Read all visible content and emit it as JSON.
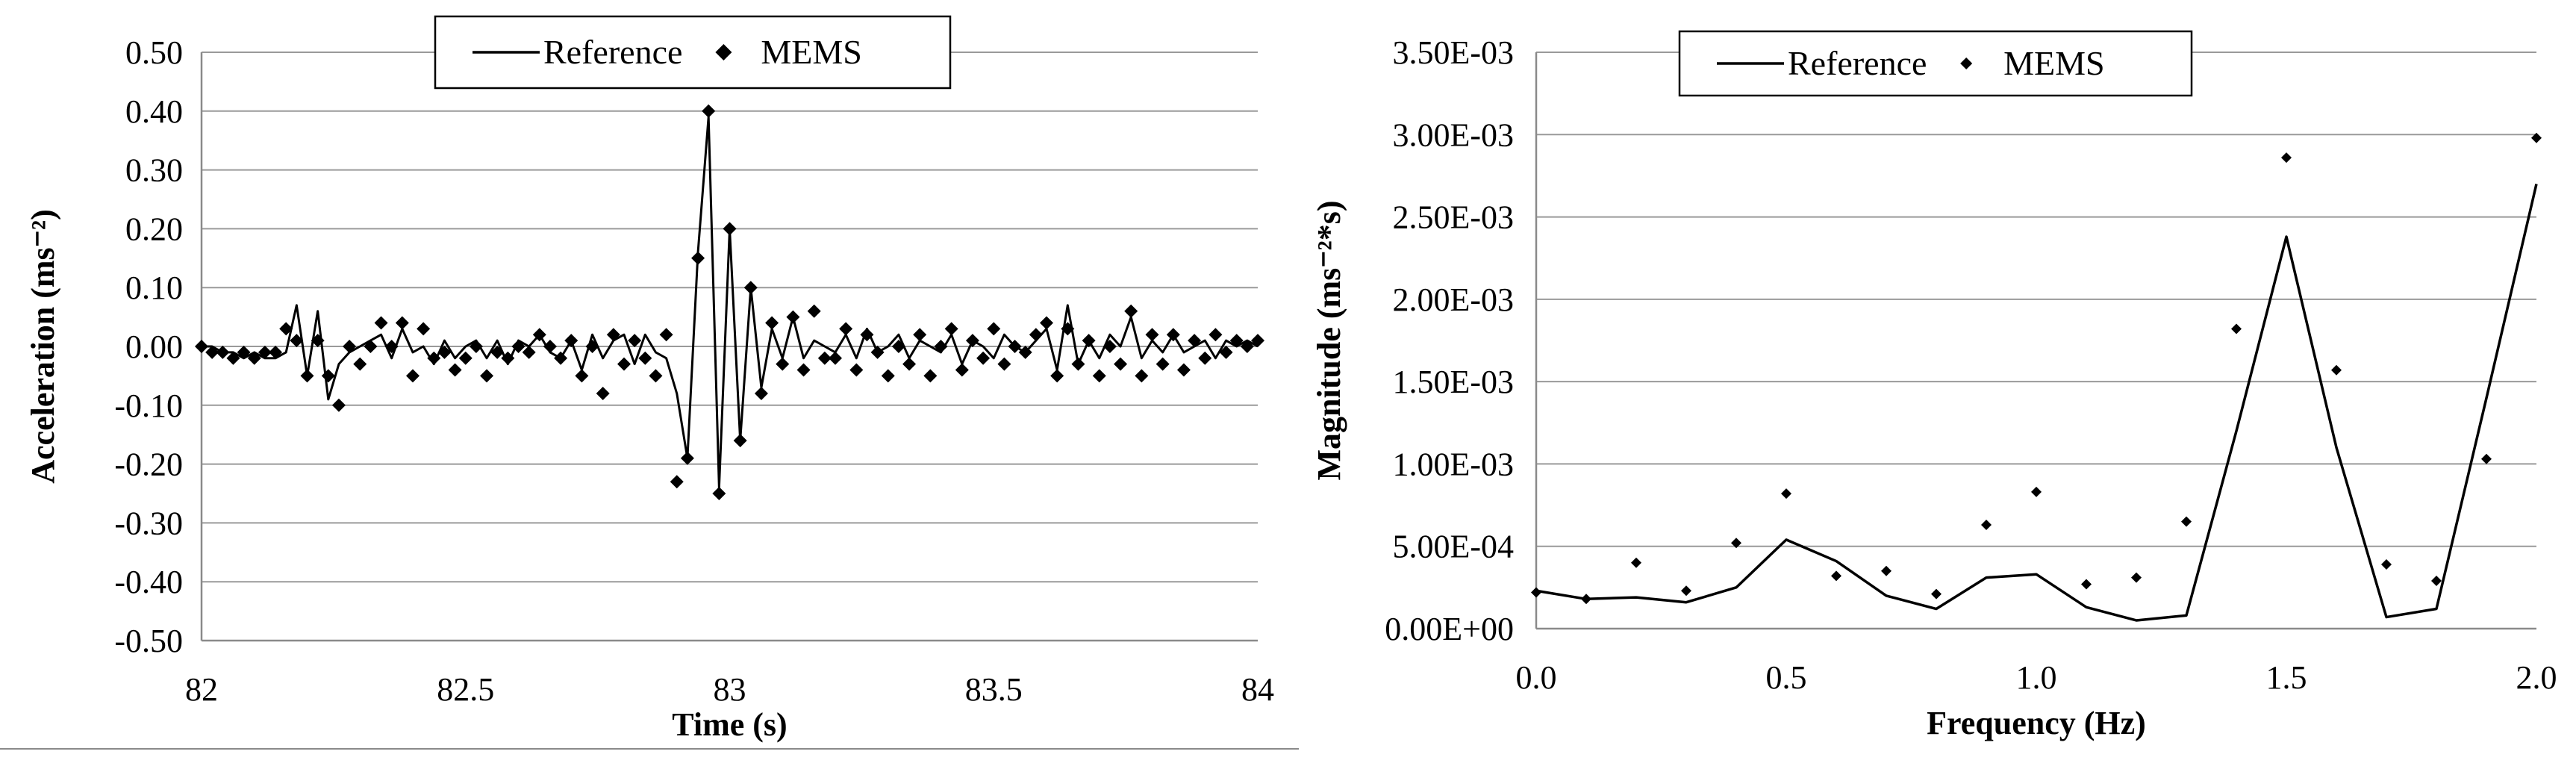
{
  "chart_data": [
    {
      "type": "line",
      "title": "",
      "xlabel": "Time (s)",
      "ylabel": "Acceleration (ms⁻²)",
      "xlim": [
        82,
        84
      ],
      "ylim": [
        -0.5,
        0.5
      ],
      "xticks": [
        "82",
        "82.5",
        "83",
        "83.5",
        "84"
      ],
      "yticks": [
        "0.50",
        "0.40",
        "0.30",
        "0.20",
        "0.10",
        "0.00",
        "-0.10",
        "-0.20",
        "-0.30",
        "-0.40",
        "-0.50"
      ],
      "grid": "horizontal",
      "legend_position": "top-center",
      "series": [
        {
          "name": "Reference",
          "style": "line",
          "x": [
            82.0,
            82.02,
            82.04,
            82.06,
            82.08,
            82.1,
            82.12,
            82.14,
            82.16,
            82.18,
            82.2,
            82.22,
            82.24,
            82.26,
            82.28,
            82.3,
            82.32,
            82.34,
            82.36,
            82.38,
            82.4,
            82.42,
            82.44,
            82.46,
            82.48,
            82.5,
            82.52,
            82.54,
            82.56,
            82.58,
            82.6,
            82.62,
            82.64,
            82.66,
            82.68,
            82.7,
            82.72,
            82.74,
            82.76,
            82.78,
            82.8,
            82.82,
            82.84,
            82.86,
            82.88,
            82.9,
            82.92,
            82.94,
            82.96,
            82.98,
            83.0,
            83.02,
            83.04,
            83.06,
            83.08,
            83.1,
            83.12,
            83.14,
            83.16,
            83.18,
            83.2,
            83.22,
            83.24,
            83.26,
            83.28,
            83.3,
            83.32,
            83.34,
            83.36,
            83.38,
            83.4,
            83.42,
            83.44,
            83.46,
            83.48,
            83.5,
            83.52,
            83.54,
            83.56,
            83.58,
            83.6,
            83.62,
            83.64,
            83.66,
            83.68,
            83.7,
            83.72,
            83.74,
            83.76,
            83.78,
            83.8,
            83.82,
            83.84,
            83.86,
            83.88,
            83.9,
            83.92,
            83.94,
            83.96,
            83.98,
            84.0
          ],
          "values": [
            0.0,
            0.0,
            -0.01,
            -0.01,
            -0.02,
            -0.01,
            -0.02,
            -0.02,
            -0.01,
            0.07,
            -0.05,
            0.06,
            -0.09,
            -0.03,
            -0.01,
            0.0,
            0.01,
            0.02,
            -0.02,
            0.03,
            -0.01,
            0.0,
            -0.03,
            0.01,
            -0.02,
            0.0,
            0.01,
            -0.02,
            0.01,
            -0.03,
            0.01,
            0.0,
            0.02,
            -0.01,
            -0.02,
            0.01,
            -0.04,
            0.02,
            -0.02,
            0.01,
            0.02,
            -0.03,
            0.02,
            -0.01,
            -0.02,
            -0.08,
            -0.19,
            0.16,
            0.39,
            -0.24,
            0.2,
            -0.16,
            0.1,
            -0.07,
            0.03,
            -0.02,
            0.05,
            -0.02,
            0.01,
            0.0,
            -0.01,
            0.02,
            -0.02,
            0.03,
            -0.01,
            0.0,
            0.02,
            -0.02,
            0.01,
            0.0,
            -0.01,
            0.02,
            -0.03,
            0.01,
            0.0,
            -0.02,
            0.02,
            0.0,
            -0.01,
            0.01,
            0.03,
            -0.04,
            0.07,
            -0.03,
            0.01,
            -0.02,
            0.02,
            0.0,
            0.05,
            -0.02,
            0.01,
            -0.01,
            0.02,
            -0.01,
            0.0,
            0.01,
            -0.02,
            0.01,
            0.0,
            0.01,
            0.0
          ]
        },
        {
          "name": "MEMS",
          "style": "marker",
          "x": [
            82.0,
            82.02,
            82.04,
            82.06,
            82.08,
            82.1,
            82.12,
            82.14,
            82.16,
            82.18,
            82.2,
            82.22,
            82.24,
            82.26,
            82.28,
            82.3,
            82.32,
            82.34,
            82.36,
            82.38,
            82.4,
            82.42,
            82.44,
            82.46,
            82.48,
            82.5,
            82.52,
            82.54,
            82.56,
            82.58,
            82.6,
            82.62,
            82.64,
            82.66,
            82.68,
            82.7,
            82.72,
            82.74,
            82.76,
            82.78,
            82.8,
            82.82,
            82.84,
            82.86,
            82.88,
            82.9,
            82.92,
            82.94,
            82.96,
            82.98,
            83.0,
            83.02,
            83.04,
            83.06,
            83.08,
            83.1,
            83.12,
            83.14,
            83.16,
            83.18,
            83.2,
            83.22,
            83.24,
            83.26,
            83.28,
            83.3,
            83.32,
            83.34,
            83.36,
            83.38,
            83.4,
            83.42,
            83.44,
            83.46,
            83.48,
            83.5,
            83.52,
            83.54,
            83.56,
            83.58,
            83.6,
            83.62,
            83.64,
            83.66,
            83.68,
            83.7,
            83.72,
            83.74,
            83.76,
            83.78,
            83.8,
            83.82,
            83.84,
            83.86,
            83.88,
            83.9,
            83.92,
            83.94,
            83.96,
            83.98,
            84.0
          ],
          "values": [
            0.0,
            -0.01,
            -0.01,
            -0.02,
            -0.01,
            -0.02,
            -0.01,
            -0.01,
            0.03,
            0.01,
            -0.05,
            0.01,
            -0.05,
            -0.1,
            0.0,
            -0.03,
            0.0,
            0.04,
            0.0,
            0.04,
            -0.05,
            0.03,
            -0.02,
            -0.01,
            -0.04,
            -0.02,
            0.0,
            -0.05,
            -0.01,
            -0.02,
            0.0,
            -0.01,
            0.02,
            0.0,
            -0.02,
            0.01,
            -0.05,
            0.0,
            -0.08,
            0.02,
            -0.03,
            0.01,
            -0.02,
            -0.05,
            0.02,
            -0.23,
            -0.19,
            0.15,
            0.4,
            -0.25,
            0.2,
            -0.16,
            0.1,
            -0.08,
            0.04,
            -0.03,
            0.05,
            -0.04,
            0.06,
            -0.02,
            -0.02,
            0.03,
            -0.04,
            0.02,
            -0.01,
            -0.05,
            0.0,
            -0.03,
            0.02,
            -0.05,
            0.0,
            0.03,
            -0.04,
            0.01,
            -0.02,
            0.03,
            -0.03,
            0.0,
            -0.01,
            0.02,
            0.04,
            -0.05,
            0.03,
            -0.03,
            0.01,
            -0.05,
            0.0,
            -0.03,
            0.06,
            -0.05,
            0.02,
            -0.03,
            0.02,
            -0.04,
            0.01,
            -0.02,
            0.02,
            -0.01,
            0.01,
            0.0,
            0.01
          ]
        }
      ]
    },
    {
      "type": "line",
      "title": "",
      "xlabel": "Frequency (Hz)",
      "ylabel": "Magnitude (ms⁻²*s)",
      "xlim": [
        0,
        2
      ],
      "ylim": [
        0,
        0.0035
      ],
      "xticks": [
        "0.0",
        "0.5",
        "1.0",
        "1.5",
        "2.0"
      ],
      "yticks": [
        "3.50E-03",
        "3.00E-03",
        "2.50E-03",
        "2.00E-03",
        "1.50E-03",
        "1.00E-03",
        "5.00E-04",
        "0.00E+00"
      ],
      "grid": "horizontal",
      "legend_position": "top-center",
      "series": [
        {
          "name": "Reference",
          "style": "line",
          "x": [
            0.0,
            0.1,
            0.2,
            0.3,
            0.4,
            0.5,
            0.6,
            0.7,
            0.8,
            0.9,
            1.0,
            1.1,
            1.2,
            1.3,
            1.4,
            1.5,
            1.6,
            1.7,
            1.8,
            1.9,
            2.0
          ],
          "values": [
            0.00023,
            0.00018,
            0.00019,
            0.00016,
            0.00025,
            0.00054,
            0.00041,
            0.0002,
            0.00012,
            0.00031,
            0.00033,
            0.00013,
            5e-05,
            8e-05,
            0.0012,
            0.00238,
            0.0011,
            7e-05,
            0.00012,
            0.0014,
            0.0027
          ]
        },
        {
          "name": "MEMS",
          "style": "marker",
          "x": [
            0.0,
            0.1,
            0.2,
            0.3,
            0.4,
            0.5,
            0.6,
            0.7,
            0.8,
            0.9,
            1.0,
            1.1,
            1.2,
            1.3,
            1.4,
            1.5,
            1.6,
            1.7,
            1.8,
            1.9,
            2.0
          ],
          "values": [
            0.00022,
            0.00018,
            0.0004,
            0.00023,
            0.00052,
            0.00082,
            0.00032,
            0.00035,
            0.00021,
            0.00063,
            0.00083,
            0.00027,
            0.00031,
            0.00065,
            0.00182,
            0.00286,
            0.00157,
            0.00039,
            0.00029,
            0.00103,
            0.00298
          ]
        }
      ]
    }
  ]
}
